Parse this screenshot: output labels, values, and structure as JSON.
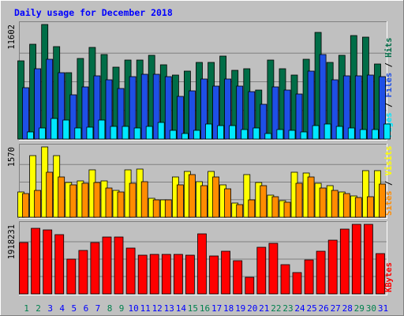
{
  "chart_data": {
    "type": "bar",
    "title": "Daily usage for December 2018",
    "categories": [
      "1",
      "2",
      "3",
      "4",
      "5",
      "6",
      "7",
      "8",
      "9",
      "10",
      "11",
      "12",
      "13",
      "14",
      "15",
      "16",
      "17",
      "18",
      "19",
      "20",
      "21",
      "22",
      "23",
      "24",
      "25",
      "26",
      "27",
      "28",
      "29",
      "30",
      "31"
    ],
    "weekend_days": [
      "1",
      "2",
      "8",
      "9",
      "15",
      "16",
      "22",
      "23",
      "29",
      "30"
    ],
    "panels": [
      {
        "id": "hits",
        "ymax_label": "11602",
        "ylim": [
          0,
          11602
        ],
        "right_label": [
          "Pages",
          "Files",
          "Hits"
        ],
        "series": [
          {
            "name": "Hits",
            "color": "#006d47",
            "values": [
              7900,
              9600,
              11602,
              9400,
              6700,
              8200,
              9300,
              8600,
              7300,
              8000,
              8000,
              8500,
              7500,
              6500,
              6900,
              7800,
              7800,
              8400,
              7000,
              7100,
              5000,
              8000,
              7100,
              6500,
              8100,
              10800,
              7800,
              8500,
              10500,
              10300,
              7600
            ]
          },
          {
            "name": "Files",
            "color": "#1e4fe6",
            "values": [
              5200,
              7100,
              8100,
              6700,
              4500,
              5300,
              6400,
              6000,
              5100,
              6300,
              6600,
              6600,
              6300,
              4300,
              4900,
              6100,
              5400,
              6100,
              5400,
              4800,
              3500,
              5300,
              5000,
              4600,
              6900,
              8600,
              6000,
              6400,
              6400,
              6500,
              6300
            ]
          },
          {
            "name": "Pages",
            "color": "#00e8ff",
            "values": [
              700,
              1100,
              2100,
              1900,
              1100,
              1200,
              1900,
              1300,
              1300,
              1100,
              1300,
              1700,
              900,
              600,
              900,
              1500,
              1400,
              1400,
              1000,
              1100,
              600,
              1000,
              900,
              700,
              1400,
              1500,
              1300,
              1100,
              1000,
              1000,
              1500
            ]
          }
        ]
      },
      {
        "id": "visits",
        "ymax_label": "1570",
        "ylim": [
          0,
          1570
        ],
        "right_label": [
          "Sites",
          "Visits"
        ],
        "series": [
          {
            "name": "Visits",
            "color": "#ffff00",
            "values": [
              570,
              1380,
              1570,
              1380,
              780,
              820,
              1060,
              820,
              600,
              1050,
              1080,
              420,
              380,
              900,
              1020,
              800,
              1020,
              720,
              310,
              950,
              780,
              500,
              370,
              1010,
              990,
              760,
              710,
              570,
              480,
              1040,
              1040
            ]
          },
          {
            "name": "Sites",
            "color": "#ff8c00",
            "values": [
              530,
              600,
              1000,
              900,
              730,
              760,
              780,
              650,
              560,
              760,
              800,
              390,
              380,
              730,
              950,
              700,
              900,
              640,
              290,
              390,
              700,
              460,
              340,
              760,
              900,
              650,
              600,
              530,
              440,
              460,
              740
            ]
          }
        ]
      },
      {
        "id": "kbytes",
        "ymax_label": "1918231",
        "ylim": [
          0,
          1918231
        ],
        "right_label": [
          "KBytes"
        ],
        "series": [
          {
            "name": "KBytes",
            "color": "#ff0000",
            "values": [
              1418231,
              1818231,
              1758231,
              1638231,
              968231,
              1198231,
              1418231,
              1578231,
              1578231,
              1258231,
              1078231,
              1098231,
              1098231,
              1098231,
              1058231,
              1658231,
              1038231,
              1178231,
              908231,
              458231,
              1278231,
              1398231,
              808231,
              578231,
              938231,
              1178231,
              1478231,
              1778231,
              1918231,
              1918231,
              1118231
            ]
          }
        ]
      }
    ],
    "colors": {
      "background": "#c0c0c0",
      "plot_background": "#c0c0c0",
      "title": "#0000ff",
      "weekday_label": "#0000ff",
      "weekend_label": "#00804d",
      "right_label_separator": "#000000"
    }
  }
}
